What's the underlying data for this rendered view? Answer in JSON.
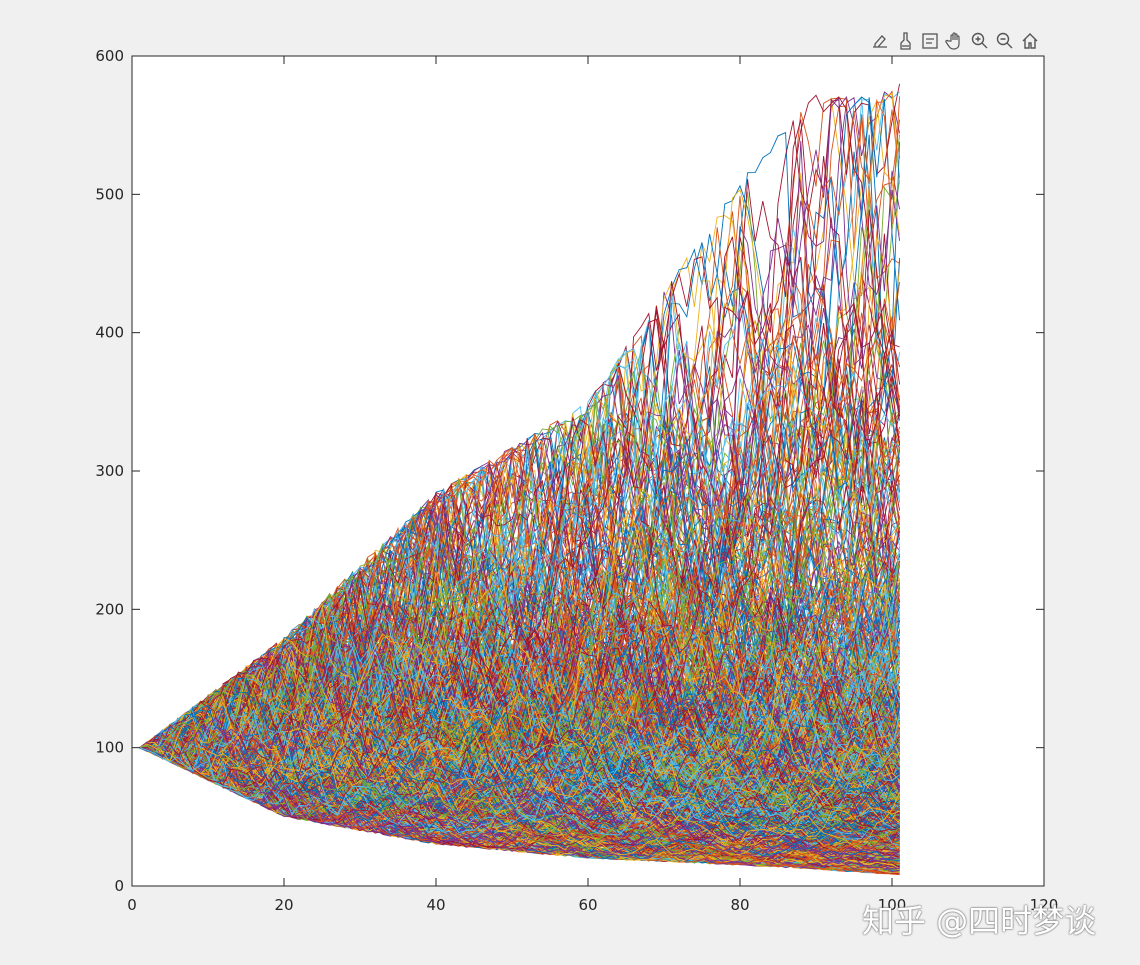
{
  "toolbar": {
    "buttons": [
      {
        "name": "export-icon"
      },
      {
        "name": "brush-icon"
      },
      {
        "name": "data-tips-icon"
      },
      {
        "name": "pan-icon"
      },
      {
        "name": "zoom-in-icon"
      },
      {
        "name": "zoom-out-icon"
      },
      {
        "name": "home-icon"
      }
    ]
  },
  "watermark": {
    "text": "知乎 @四时梦谈"
  },
  "chart_data": {
    "type": "line",
    "title": "",
    "xlabel": "",
    "ylabel": "",
    "xlim": [
      0,
      120
    ],
    "ylim": [
      0,
      600
    ],
    "xticks": [
      0,
      20,
      40,
      60,
      80,
      100,
      120
    ],
    "yticks": [
      0,
      100,
      200,
      300,
      400,
      500,
      600
    ],
    "x_start": 1,
    "x_end": 101,
    "initial_value": 100,
    "series_count": 1000,
    "color_cycle": [
      "#0072BD",
      "#D95319",
      "#EDB120",
      "#7E2F8E",
      "#77AC30",
      "#4DBEEE",
      "#A2142F"
    ],
    "envelope": {
      "x": [
        1,
        20,
        40,
        60,
        80,
        90,
        95,
        101
      ],
      "upper": [
        100,
        180,
        285,
        350,
        510,
        575,
        570,
        580
      ],
      "lower": [
        100,
        50,
        30,
        20,
        15,
        12,
        10,
        8
      ]
    },
    "grid": false,
    "legend": "none",
    "background": "#ffffff"
  }
}
